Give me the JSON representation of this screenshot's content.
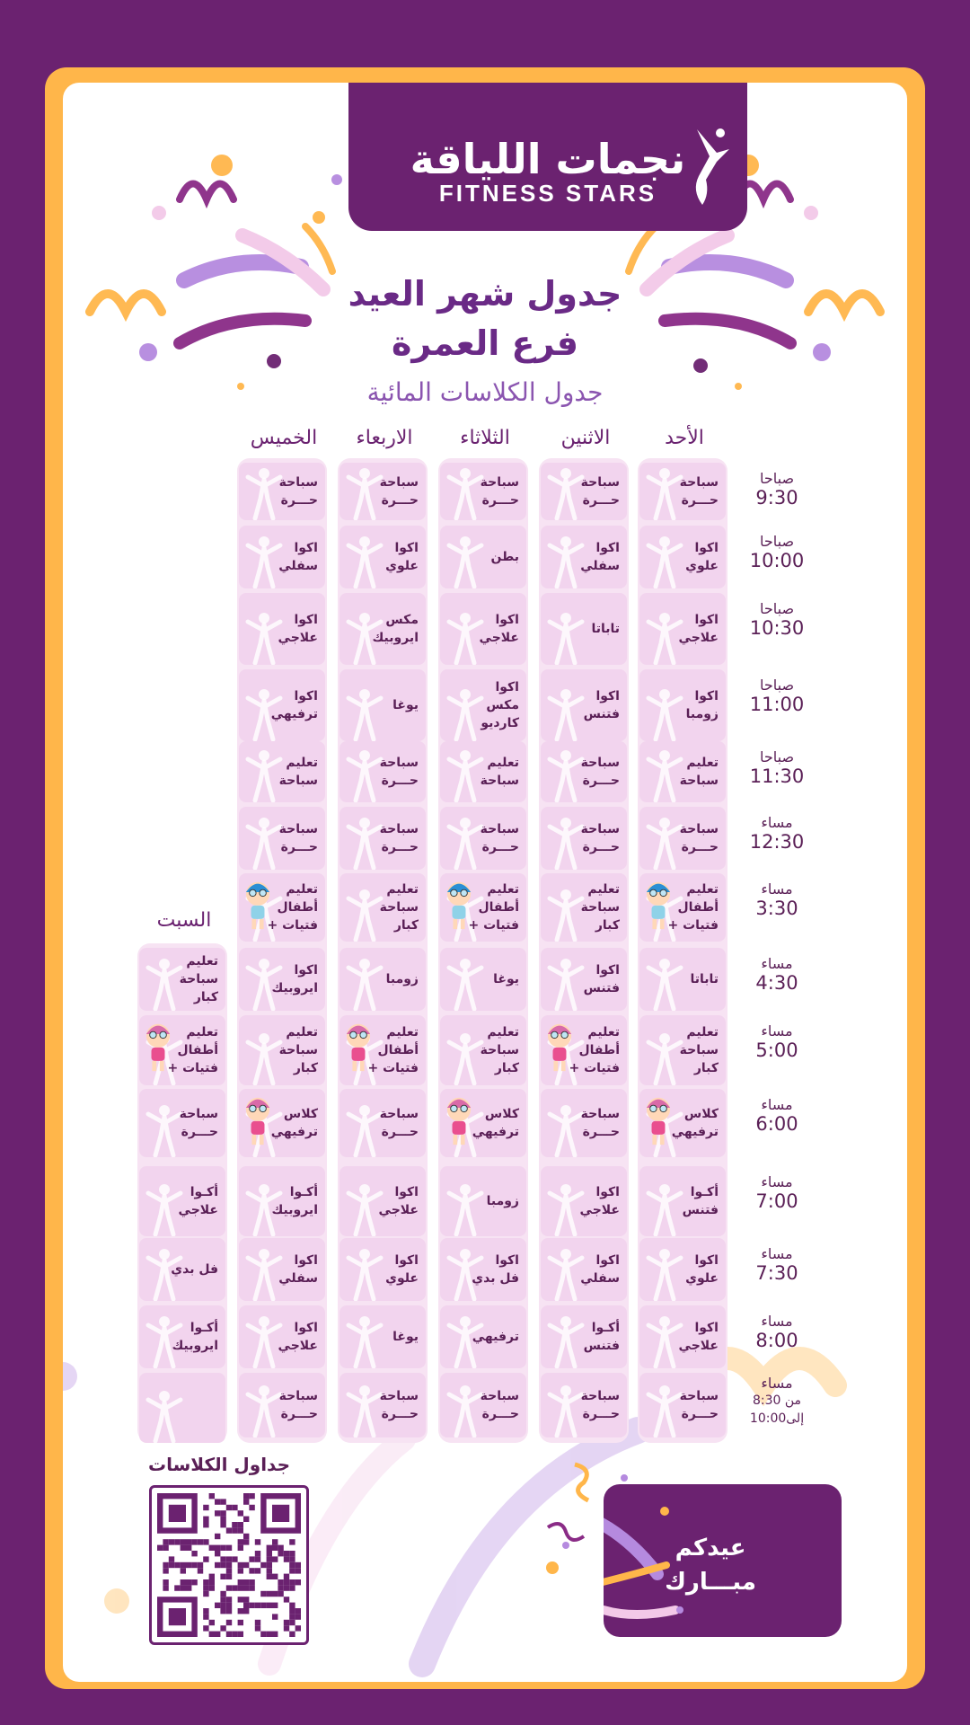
{
  "brand": {
    "arabic": "نجمات اللياقة",
    "english": "FITNESS STARS"
  },
  "title_line1": "جدول شهر العيد",
  "title_line2": "فرع العمرة",
  "subtitle": "جدول الكلاسات المائية",
  "days": [
    "الأحد",
    "الاثنين",
    "الثلاثاء",
    "الاربعاء",
    "الخميس",
    "السبت"
  ],
  "times": [
    {
      "label": "صباحا",
      "value": "9:30"
    },
    {
      "label": "صباحا",
      "value": "10:00"
    },
    {
      "label": "صباحا",
      "value": "10:30"
    },
    {
      "label": "صباحا",
      "value": "11:00"
    },
    {
      "label": "صباحا",
      "value": "11:30"
    },
    {
      "label": "مساء",
      "value": "12:30"
    },
    {
      "label": "مساء",
      "value": "3:30"
    },
    {
      "label": "مساء",
      "value": "4:30"
    },
    {
      "label": "مساء",
      "value": "5:00"
    },
    {
      "label": "مساء",
      "value": "6:00"
    },
    {
      "label": "مساء",
      "value": "7:00"
    },
    {
      "label": "مساء",
      "value": "7:30"
    },
    {
      "label": "مساء",
      "value": "8:00"
    },
    {
      "label": "مساء",
      "value": "من 8:30\nإلى10:00"
    }
  ],
  "schedule": {
    "sunday": [
      "سباحة\nحـــرة",
      "اكوا\nعلوي",
      "اكوا\nعلاجي",
      "اكوا\nزومبا",
      "تعليم\nسباحة",
      "سباحة\nحـــرة",
      "تعليم\nأطفال\n+ فتيات",
      "تاباتا",
      "تعليم\nسباحة\nكبار",
      "كلاس\nترفيهي",
      "أكـوا\nفتنس",
      "اكوا\nعلوي",
      "اكوا\nعلاجي",
      "سباحة\nحـــرة"
    ],
    "monday": [
      "سباحة\nحـــرة",
      "اكوا\nسفلي",
      "تاباتا",
      "اكوا\nفتنس",
      "سباحة\nحـــرة",
      "سباحة\nحـــرة",
      "تعليم\nسباحة\nكبار",
      "اكوا\nفتنس",
      "تعليم\nأطفال\n+ فتيات",
      "سباحة\nحـــرة",
      "اكوا\nعلاجي",
      "اكوا\nسفلي",
      "أكـوا\nفتنس",
      "سباحة\nحـــرة"
    ],
    "tuesday": [
      "سباحة\nحـــرة",
      "بطن",
      "اكوا\nعلاجي",
      "اكوا\nمكس\nكارديو",
      "تعليم\nسباحة",
      "سباحة\nحـــرة",
      "تعليم\nأطفال\n+ فتيات",
      "يوغا",
      "تعليم\nسباحة\nكبار",
      "كلاس\nترفيهي",
      "زومبا",
      "اكوا\nفل بدي",
      "ترفيهي",
      "سباحة\nحـــرة"
    ],
    "wednesday": [
      "سباحة\nحـــرة",
      "اكوا\nعلوي",
      "مكس\nايروبيك",
      "يوغا",
      "سباحة\nحـــرة",
      "سباحة\nحـــرة",
      "تعليم\nسباحة\nكبار",
      "زومبا",
      "تعليم\nأطفال\n+ فتيات",
      "سباحة\nحـــرة",
      "اكوا\nعلاجي",
      "اكوا\nعلوي",
      "يوغا",
      "سباحة\nحـــرة"
    ],
    "thursday": [
      "سباحة\nحـــرة",
      "اكوا\nسفلي",
      "اكوا\nعلاجي",
      "اكوا\nترفيهي",
      "تعليم\nسباحة",
      "سباحة\nحـــرة",
      "تعليم\nأطفال\n+ فتيات",
      "اكوا\nايروبيك",
      "تعليم\nسباحة\nكبار",
      "كلاس\nترفيهي",
      "أكـوا\nايروبيك",
      "اكوا\nسفلي",
      "اكوا\nعلاجي",
      "سباحة\nحـــرة"
    ],
    "saturday": [
      "تعليم\nسباحة\nكبار",
      "تعليم\nأطفال\n+ فتيات",
      "سباحة\nحـــرة",
      "أكـوا\nعلاجي",
      "فل بدي",
      "أكـوا\nايروبيك",
      ""
    ]
  },
  "qr_label": "جداول الكلاسات",
  "eid_greeting": "عيدكم\nمبـــارك",
  "colors": {
    "primary": "#6b2270",
    "accent": "#ffb64a",
    "cell": "#f2d4ee"
  }
}
